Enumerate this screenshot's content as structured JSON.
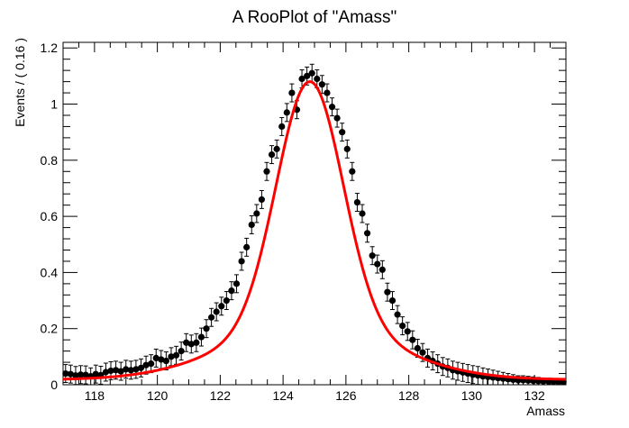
{
  "chart_data": {
    "type": "scatter",
    "title": "A RooPlot of \"Amass\"",
    "xlabel": "Amass",
    "ylabel": "Events / ( 0.16 )",
    "xlim": [
      117.0,
      133.0
    ],
    "ylim": [
      0,
      1.22
    ],
    "x_ticks": [
      118,
      120,
      122,
      124,
      126,
      128,
      130,
      132
    ],
    "y_ticks": [
      0,
      0.2,
      0.4,
      0.6,
      0.8,
      1,
      1.2
    ],
    "grid": false,
    "legend": "none",
    "colors": {
      "data": "#000000",
      "fit": "#ff0000"
    },
    "series": [
      {
        "kind": "data-points-with-errors",
        "x": [
          117.08,
          117.24,
          117.4,
          117.56,
          117.72,
          117.88,
          118.04,
          118.2,
          118.36,
          118.52,
          118.68,
          118.84,
          119.0,
          119.16,
          119.32,
          119.48,
          119.64,
          119.8,
          119.96,
          120.12,
          120.28,
          120.44,
          120.6,
          120.76,
          120.92,
          121.08,
          121.24,
          121.4,
          121.56,
          121.72,
          121.88,
          122.04,
          122.2,
          122.36,
          122.52,
          122.68,
          122.84,
          123.0,
          123.16,
          123.32,
          123.48,
          123.64,
          123.8,
          123.96,
          124.12,
          124.28,
          124.44,
          124.6,
          124.76,
          124.92,
          125.08,
          125.24,
          125.4,
          125.56,
          125.72,
          125.88,
          126.04,
          126.2,
          126.36,
          126.52,
          126.68,
          126.84,
          127.0,
          127.16,
          127.32,
          127.48,
          127.64,
          127.8,
          127.96,
          128.12,
          128.28,
          128.44,
          128.6,
          128.76,
          128.92,
          129.08,
          129.24,
          129.4,
          129.56,
          129.72,
          129.88,
          130.04,
          130.2,
          130.36,
          130.52,
          130.68,
          130.84,
          131.0,
          131.16,
          131.32,
          131.48,
          131.64,
          131.8,
          131.96,
          132.12,
          132.28,
          132.44,
          132.6,
          132.76,
          132.92
        ],
        "y": [
          0.04,
          0.038,
          0.033,
          0.036,
          0.035,
          0.03,
          0.038,
          0.034,
          0.045,
          0.05,
          0.052,
          0.048,
          0.055,
          0.052,
          0.055,
          0.06,
          0.07,
          0.075,
          0.095,
          0.09,
          0.085,
          0.1,
          0.105,
          0.12,
          0.15,
          0.145,
          0.15,
          0.17,
          0.2,
          0.24,
          0.26,
          0.28,
          0.3,
          0.335,
          0.36,
          0.44,
          0.49,
          0.57,
          0.61,
          0.66,
          0.76,
          0.82,
          0.84,
          0.92,
          0.97,
          1.04,
          0.98,
          1.09,
          1.1,
          1.11,
          1.09,
          1.07,
          1.04,
          0.99,
          0.95,
          0.9,
          0.84,
          0.76,
          0.65,
          0.61,
          0.54,
          0.46,
          0.43,
          0.41,
          0.33,
          0.3,
          0.25,
          0.21,
          0.19,
          0.16,
          0.13,
          0.115,
          0.095,
          0.085,
          0.075,
          0.065,
          0.06,
          0.052,
          0.048,
          0.044,
          0.04,
          0.036,
          0.033,
          0.03,
          0.028,
          0.026,
          0.024,
          0.022,
          0.02,
          0.018,
          0.016,
          0.016,
          0.015,
          0.014,
          0.013,
          0.012,
          0.012,
          0.011,
          0.01,
          0.01
        ],
        "yerr": 0.032
      },
      {
        "kind": "fit-curve",
        "peak_x": 124.85,
        "peak_y": 1.08,
        "baseline": 0.018
      }
    ]
  }
}
